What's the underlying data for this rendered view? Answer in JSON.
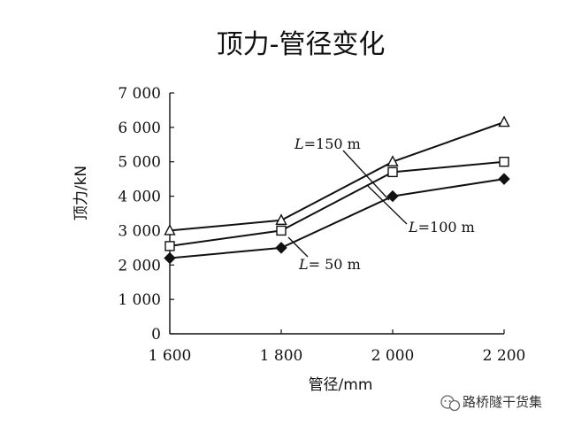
{
  "chart_data": {
    "type": "line",
    "title": "顶力-管径变化",
    "xlabel": "管径/mm",
    "ylabel": "顶力/kN",
    "x": [
      1600,
      1800,
      2000,
      2200
    ],
    "x_tick_labels": [
      "1 600",
      "1 800",
      "2 000",
      "2 200"
    ],
    "y_ticks": [
      0,
      1000,
      2000,
      3000,
      4000,
      5000,
      6000,
      7000
    ],
    "y_tick_labels": [
      "0",
      "1 000",
      "2 000",
      "3 000",
      "4 000",
      "5 000",
      "6 000",
      "7 000"
    ],
    "xlim": [
      1600,
      2200
    ],
    "ylim": [
      0,
      7000
    ],
    "grid": false,
    "series": [
      {
        "name": "L=150 m",
        "marker": "triangle",
        "values": [
          3000,
          3300,
          5000,
          6150
        ]
      },
      {
        "name": "L=100 m",
        "marker": "square",
        "values": [
          2550,
          3000,
          4700,
          5000
        ]
      },
      {
        "name": "L=50 m",
        "marker": "diamond",
        "values": [
          2200,
          2500,
          4000,
          4500
        ]
      }
    ],
    "annotations": [
      {
        "prefix": "L",
        "text": "=150 m",
        "series": 0
      },
      {
        "prefix": "L",
        "text": "=100 m",
        "series": 1
      },
      {
        "prefix": "L",
        "text": "= 50 m",
        "series": 2
      }
    ]
  },
  "watermark": {
    "text": "路桥隧干货集",
    "icon": "wechat-icon"
  }
}
